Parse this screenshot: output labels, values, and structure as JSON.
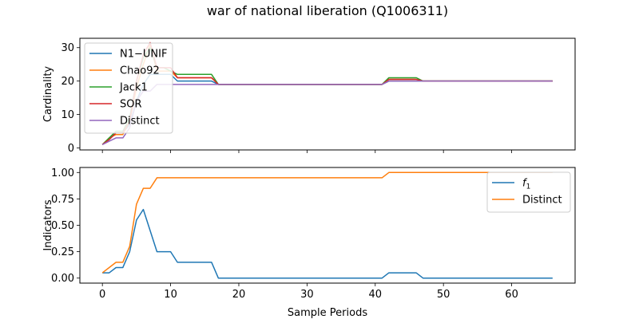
{
  "figure": {
    "title": "war of national liberation (Q1006311)"
  },
  "chart_data": [
    {
      "type": "line",
      "title": "",
      "xlabel": "",
      "ylabel": "Cardinality",
      "xlim": [
        -3.3,
        69.3
      ],
      "ylim": [
        -0.6,
        32.8
      ],
      "xticks": [
        0,
        10,
        20,
        30,
        40,
        50,
        60
      ],
      "xticklabels_visible": false,
      "yticks": [
        0,
        10,
        20,
        30
      ],
      "grid": false,
      "legend_position": "top-left",
      "series": [
        {
          "name": "N1−UNIF",
          "color": "#1f77b4",
          "points": [
            [
              0,
              1
            ],
            [
              1,
              2.5
            ],
            [
              2,
              4.5
            ],
            [
              3,
              4.5
            ],
            [
              4,
              7
            ],
            [
              5,
              14
            ],
            [
              6,
              19
            ],
            [
              7,
              22
            ],
            [
              8,
              22
            ],
            [
              9,
              22
            ],
            [
              10,
              22
            ],
            [
              11,
              20
            ],
            [
              12,
              20
            ],
            [
              13,
              20
            ],
            [
              14,
              20
            ],
            [
              15,
              20
            ],
            [
              16,
              20
            ],
            [
              17,
              19
            ],
            [
              18,
              19
            ],
            [
              19,
              19
            ],
            [
              20,
              19
            ],
            [
              25,
              19
            ],
            [
              30,
              19
            ],
            [
              35,
              19
            ],
            [
              40,
              19
            ],
            [
              41,
              19
            ],
            [
              42,
              20
            ],
            [
              43,
              20
            ],
            [
              44,
              20
            ],
            [
              45,
              20
            ],
            [
              46,
              20
            ],
            [
              47,
              20
            ],
            [
              50,
              20
            ],
            [
              55,
              20
            ],
            [
              60,
              20
            ],
            [
              66,
              20
            ]
          ]
        },
        {
          "name": "Chao92",
          "color": "#ff7f0e",
          "points": [
            [
              0,
              1
            ],
            [
              1,
              3
            ],
            [
              2,
              4
            ],
            [
              3,
              4
            ],
            [
              4,
              8
            ],
            [
              5,
              18
            ],
            [
              6,
              25
            ],
            [
              7,
              31
            ],
            [
              8,
              23
            ],
            [
              9,
              23
            ],
            [
              10,
              23
            ],
            [
              11,
              21
            ],
            [
              12,
              21
            ],
            [
              13,
              21
            ],
            [
              14,
              21
            ],
            [
              15,
              21
            ],
            [
              16,
              21
            ],
            [
              17,
              19
            ],
            [
              18,
              19
            ],
            [
              20,
              19
            ],
            [
              25,
              19
            ],
            [
              30,
              19
            ],
            [
              35,
              19
            ],
            [
              40,
              19
            ],
            [
              41,
              19
            ],
            [
              42,
              20.5
            ],
            [
              43,
              20.5
            ],
            [
              44,
              20.5
            ],
            [
              45,
              20.5
            ],
            [
              46,
              20.5
            ],
            [
              47,
              20
            ],
            [
              50,
              20
            ],
            [
              55,
              20
            ],
            [
              60,
              20
            ],
            [
              66,
              20
            ]
          ]
        },
        {
          "name": "Jack1",
          "color": "#2ca02c",
          "points": [
            [
              0,
              1
            ],
            [
              1,
              3
            ],
            [
              2,
              5
            ],
            [
              3,
              5
            ],
            [
              4,
              9
            ],
            [
              5,
              20
            ],
            [
              6,
              27
            ],
            [
              7,
              30
            ],
            [
              8,
              24
            ],
            [
              9,
              24
            ],
            [
              10,
              23
            ],
            [
              11,
              22
            ],
            [
              12,
              22
            ],
            [
              13,
              22
            ],
            [
              14,
              22
            ],
            [
              15,
              22
            ],
            [
              16,
              22
            ],
            [
              17,
              19
            ],
            [
              18,
              19
            ],
            [
              20,
              19
            ],
            [
              25,
              19
            ],
            [
              30,
              19
            ],
            [
              35,
              19
            ],
            [
              40,
              19
            ],
            [
              41,
              19
            ],
            [
              42,
              21
            ],
            [
              43,
              21
            ],
            [
              44,
              21
            ],
            [
              45,
              21
            ],
            [
              46,
              21
            ],
            [
              47,
              20
            ],
            [
              50,
              20
            ],
            [
              55,
              20
            ],
            [
              60,
              20
            ],
            [
              66,
              20
            ]
          ]
        },
        {
          "name": "SOR",
          "color": "#d62728",
          "points": [
            [
              0,
              1
            ],
            [
              1,
              2.5
            ],
            [
              2,
              4.5
            ],
            [
              3,
              4.5
            ],
            [
              4,
              8
            ],
            [
              5,
              20
            ],
            [
              6,
              28
            ],
            [
              7,
              31.5
            ],
            [
              8,
              24
            ],
            [
              9,
              24
            ],
            [
              10,
              24
            ],
            [
              11,
              21
            ],
            [
              12,
              21
            ],
            [
              13,
              21
            ],
            [
              14,
              21
            ],
            [
              15,
              21
            ],
            [
              16,
              21
            ],
            [
              17,
              19
            ],
            [
              18,
              19
            ],
            [
              20,
              19
            ],
            [
              25,
              19
            ],
            [
              30,
              19
            ],
            [
              35,
              19
            ],
            [
              40,
              19
            ],
            [
              41,
              19
            ],
            [
              42,
              20.5
            ],
            [
              43,
              20.5
            ],
            [
              44,
              20.5
            ],
            [
              45,
              20.5
            ],
            [
              46,
              20.5
            ],
            [
              47,
              20
            ],
            [
              50,
              20
            ],
            [
              55,
              20
            ],
            [
              60,
              20
            ],
            [
              66,
              20
            ]
          ]
        },
        {
          "name": "Distinct",
          "color": "#9467bd",
          "points": [
            [
              0,
              1
            ],
            [
              1,
              2
            ],
            [
              2,
              3
            ],
            [
              3,
              3
            ],
            [
              4,
              6
            ],
            [
              5,
              14
            ],
            [
              6,
              17
            ],
            [
              7,
              17
            ],
            [
              8,
              19
            ],
            [
              9,
              19
            ],
            [
              10,
              19
            ],
            [
              11,
              19
            ],
            [
              12,
              19
            ],
            [
              13,
              19
            ],
            [
              14,
              19
            ],
            [
              15,
              19
            ],
            [
              16,
              19
            ],
            [
              17,
              19
            ],
            [
              18,
              19
            ],
            [
              20,
              19
            ],
            [
              25,
              19
            ],
            [
              30,
              19
            ],
            [
              35,
              19
            ],
            [
              40,
              19
            ],
            [
              41,
              19
            ],
            [
              42,
              20
            ],
            [
              43,
              20
            ],
            [
              44,
              20
            ],
            [
              45,
              20
            ],
            [
              46,
              20
            ],
            [
              47,
              20
            ],
            [
              50,
              20
            ],
            [
              55,
              20
            ],
            [
              60,
              20
            ],
            [
              66,
              20
            ]
          ]
        }
      ]
    },
    {
      "type": "line",
      "title": "",
      "xlabel": "Sample Periods",
      "ylabel": "Indicators",
      "xlim": [
        -3.3,
        69.3
      ],
      "ylim": [
        -0.0475,
        1.0475
      ],
      "xticks": [
        0,
        10,
        20,
        30,
        40,
        50,
        60
      ],
      "xticklabels_visible": true,
      "yticks": [
        0.0,
        0.25,
        0.5,
        0.75,
        1.0
      ],
      "yticklabels": [
        "0.00",
        "0.25",
        "0.50",
        "0.75",
        "1.00"
      ],
      "grid": false,
      "legend_position": "top-right",
      "series": [
        {
          "name": "f1",
          "legend_main": "f",
          "legend_sub": "1",
          "color": "#1f77b4",
          "points": [
            [
              0,
              0.05
            ],
            [
              1,
              0.05
            ],
            [
              2,
              0.1
            ],
            [
              3,
              0.1
            ],
            [
              4,
              0.25
            ],
            [
              5,
              0.55
            ],
            [
              6,
              0.65
            ],
            [
              7,
              0.45
            ],
            [
              8,
              0.25
            ],
            [
              9,
              0.25
            ],
            [
              10,
              0.25
            ],
            [
              11,
              0.15
            ],
            [
              12,
              0.15
            ],
            [
              13,
              0.15
            ],
            [
              14,
              0.15
            ],
            [
              15,
              0.15
            ],
            [
              16,
              0.15
            ],
            [
              17,
              0
            ],
            [
              18,
              0
            ],
            [
              20,
              0
            ],
            [
              25,
              0
            ],
            [
              30,
              0
            ],
            [
              35,
              0
            ],
            [
              40,
              0
            ],
            [
              41,
              0
            ],
            [
              42,
              0.05
            ],
            [
              43,
              0.05
            ],
            [
              44,
              0.05
            ],
            [
              45,
              0.05
            ],
            [
              46,
              0.05
            ],
            [
              47,
              0
            ],
            [
              50,
              0
            ],
            [
              55,
              0
            ],
            [
              60,
              0
            ],
            [
              66,
              0
            ]
          ]
        },
        {
          "name": "Distinct",
          "color": "#ff7f0e",
          "points": [
            [
              0,
              0.05
            ],
            [
              1,
              0.1
            ],
            [
              2,
              0.15
            ],
            [
              3,
              0.15
            ],
            [
              4,
              0.3
            ],
            [
              5,
              0.7
            ],
            [
              6,
              0.85
            ],
            [
              7,
              0.85
            ],
            [
              8,
              0.95
            ],
            [
              9,
              0.95
            ],
            [
              10,
              0.95
            ],
            [
              15,
              0.95
            ],
            [
              20,
              0.95
            ],
            [
              25,
              0.95
            ],
            [
              30,
              0.95
            ],
            [
              35,
              0.95
            ],
            [
              40,
              0.95
            ],
            [
              41,
              0.95
            ],
            [
              42,
              1
            ],
            [
              43,
              1
            ],
            [
              45,
              1
            ],
            [
              50,
              1
            ],
            [
              55,
              1
            ],
            [
              60,
              1
            ],
            [
              66,
              1
            ]
          ]
        }
      ]
    }
  ]
}
